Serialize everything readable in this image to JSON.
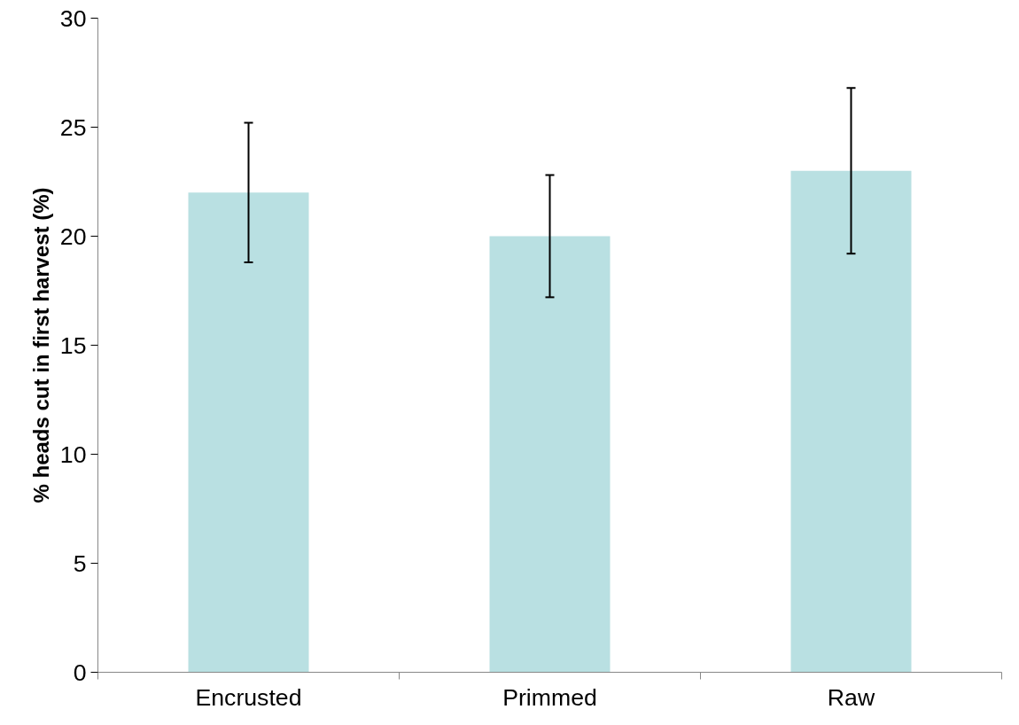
{
  "chart_data": {
    "type": "bar",
    "ylabel": "% heads cut in first harvest (%)",
    "categories": [
      "Encrusted",
      "Primmed",
      "Raw"
    ],
    "values": [
      22,
      20,
      23
    ],
    "errors": [
      3.2,
      2.8,
      3.8
    ],
    "color": "#b9e0e2",
    "ylim": [
      0,
      30
    ],
    "yticks": [
      0,
      5,
      10,
      15,
      20,
      25,
      30
    ],
    "grid": false
  }
}
